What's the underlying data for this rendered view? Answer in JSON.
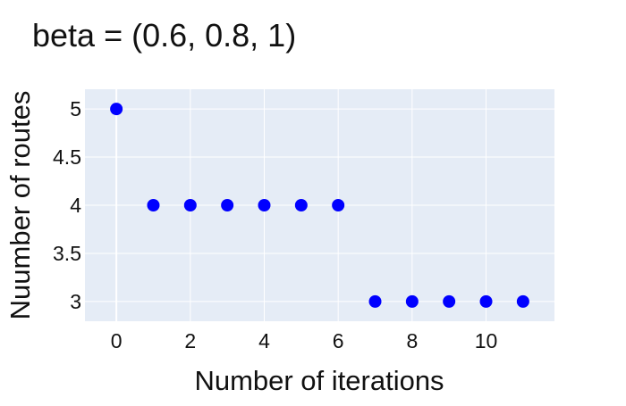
{
  "chart_data": {
    "type": "scatter",
    "title": "beta = (0.6, 0.8, 1)",
    "xlabel": "Number of iterations",
    "ylabel": "Nuumber of routes",
    "xlim": [
      -0.85,
      11.85
    ],
    "ylim": [
      2.795,
      5.205
    ],
    "xticks": [
      0,
      2,
      4,
      6,
      8,
      10
    ],
    "xtick_labels": [
      "0",
      "2",
      "4",
      "6",
      "8",
      "10"
    ],
    "yticks": [
      3,
      3.5,
      4,
      4.5,
      5
    ],
    "ytick_labels": [
      "3",
      "3.5",
      "4",
      "4.5",
      "5"
    ],
    "grid": true,
    "legend": "none",
    "colors": {
      "plot_background": "#E5ECF6",
      "gridline": "#FFFFFF",
      "marker": "#0000FF"
    },
    "series": [
      {
        "x": [
          0,
          1,
          2,
          3,
          4,
          5,
          6,
          7,
          8,
          9,
          10,
          11
        ],
        "y": [
          5,
          4,
          4,
          4,
          4,
          4,
          4,
          3,
          3,
          3,
          3,
          3
        ]
      }
    ]
  }
}
